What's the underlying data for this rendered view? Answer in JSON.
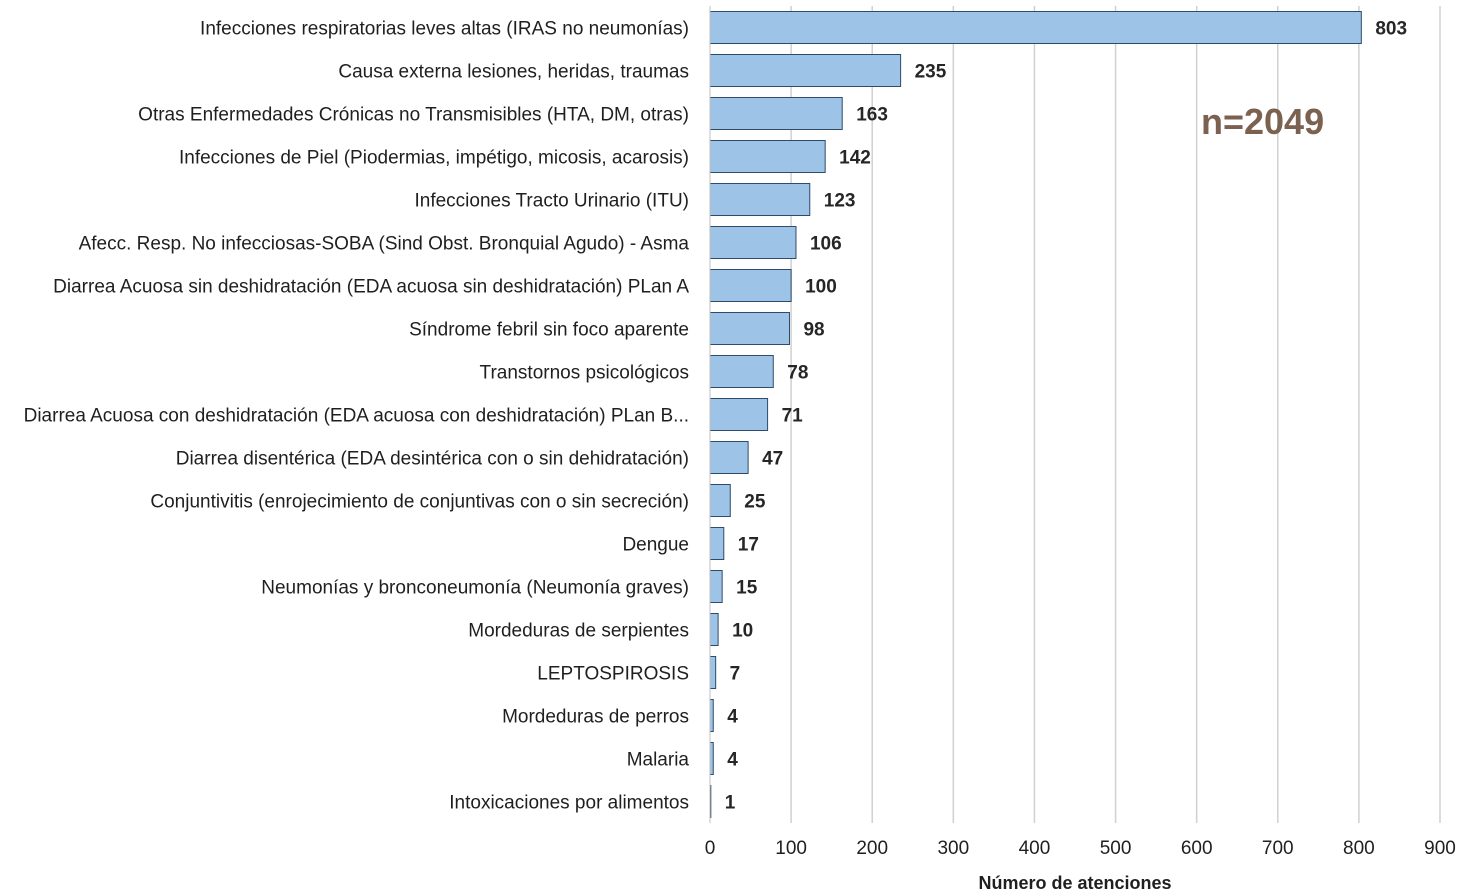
{
  "chart_data": {
    "type": "bar",
    "orientation": "horizontal",
    "categories": [
      "Infecciones respiratorias leves altas (IRAS no neumonías)",
      "Causa externa lesiones, heridas, traumas",
      "Otras Enfermedades Crónicas no Transmisibles (HTA, DM, otras)",
      "Infecciones de Piel (Piodermias, impétigo, micosis, acarosis)",
      "Infecciones Tracto Urinario (ITU)",
      "Afecc. Resp. No infecciosas-SOBA (Sind Obst. Bronquial Agudo) - Asma",
      "Diarrea Acuosa sin deshidratación (EDA acuosa sin deshidratación) PLan A",
      "Síndrome febril sin foco aparente",
      "Transtornos psicológicos",
      "Diarrea Acuosa con deshidratación (EDA acuosa con deshidratación) PLan B...",
      "Diarrea disentérica (EDA desintérica con o sin dehidratación)",
      "Conjuntivitis (enrojecimiento de conjuntivas con o sin secreción)",
      "Dengue",
      "Neumonías y bronconeumonía (Neumonía graves)",
      "Mordeduras de serpientes",
      "LEPTOSPIROSIS",
      "Mordeduras de perros",
      "Malaria",
      "Intoxicaciones por alimentos"
    ],
    "values": [
      803,
      235,
      163,
      142,
      123,
      106,
      100,
      98,
      78,
      71,
      47,
      25,
      17,
      15,
      10,
      7,
      4,
      4,
      1
    ],
    "xlabel": "Número de atenciones",
    "ylabel": "",
    "xlim": [
      0,
      900
    ],
    "x_ticks": [
      0,
      100,
      200,
      300,
      400,
      500,
      600,
      700,
      800,
      900
    ],
    "grid": "vertical",
    "annotation": "n=2049",
    "colors": {
      "bar_fill": "#9dc3e6",
      "bar_stroke": "#2e4b6b",
      "grid": "#d0d0d0",
      "annotation": "#7b6150"
    }
  }
}
